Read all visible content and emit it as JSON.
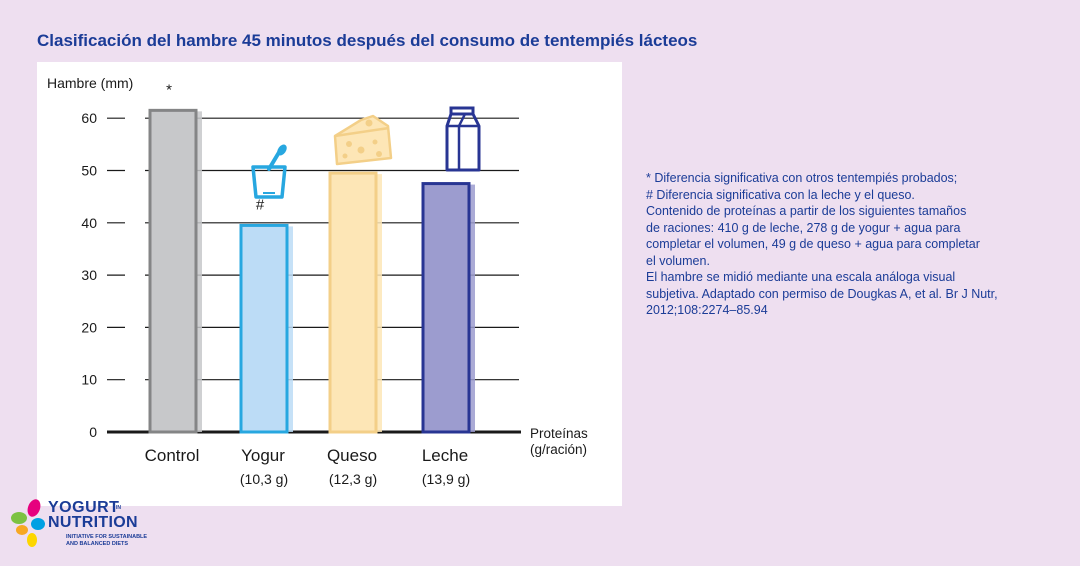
{
  "title": "Clasificación del hambre 45 minutos después del consumo de tentempiés lácteos",
  "chart_data": {
    "type": "bar",
    "ylabel": "Hambre (mm)",
    "ylim": [
      0,
      60
    ],
    "yticks": [
      "0",
      "10",
      "20",
      "30",
      "40",
      "50",
      "60"
    ],
    "xlabel_lines": [
      "Proteínas",
      "(g/ración)"
    ],
    "categories": [
      "Control",
      "Yogur",
      "Queso",
      "Leche"
    ],
    "subcategories": [
      "",
      "(10,3 g)",
      "(12,3 g)",
      "(13,9 g)"
    ],
    "values": [
      61.5,
      39.5,
      49.5,
      47.5
    ],
    "markers": [
      "*",
      "#",
      "",
      ""
    ],
    "colors": [
      {
        "fill": "#c7c8ca",
        "stroke": "#848586"
      },
      {
        "fill": "#bcdcf6",
        "stroke": "#27a7e0"
      },
      {
        "fill": "#fde6b6",
        "stroke": "#f3cf88"
      },
      {
        "fill": "#9c9ccf",
        "stroke": "#283593"
      }
    ],
    "grid": true
  },
  "notes": [
    "* Diferencia significativa con otros tentempiés probados;",
    "# Diferencia significativa con la leche y el queso.",
    "Contenido de proteínas a partir de los siguientes tamaños",
    "de raciones: 410 g de leche, 278 g de yogur + agua para",
    "completar el volumen, 49 g de queso + agua para completar",
    "el volumen.",
    "El hambre se midió mediante una escala análoga visual",
    "subjetiva. Adaptado con permiso de Dougkas A, et al. Br J Nutr,",
    "2012;108:2274–85.94"
  ],
  "logo": {
    "word1": "YOGURT",
    "word_small": "IN",
    "word2": "NUTRITION",
    "tagline1": "INITIATIVE FOR SUSTAINABLE",
    "tagline2": "AND BALANCED DIETS"
  },
  "icons": [
    "yogurt-cup-icon",
    "cheese-icon",
    "milk-carton-icon"
  ]
}
